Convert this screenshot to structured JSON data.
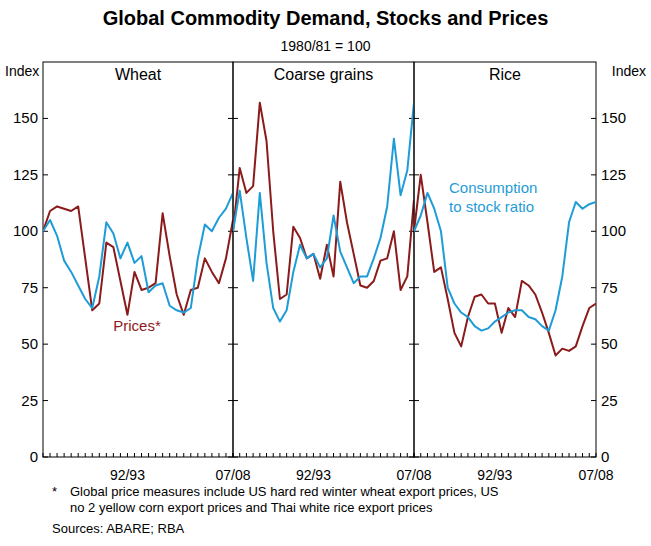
{
  "header": {
    "title": "Global Commodity Demand, Stocks and Prices",
    "subtitle": "1980/81 = 100"
  },
  "chart_data": [
    {
      "type": "line",
      "title": "Wheat",
      "ylabel": "Index",
      "categories": [
        null,
        null,
        null,
        null,
        null,
        null,
        null,
        null,
        null,
        null,
        null,
        null,
        "92/93",
        null,
        null,
        null,
        null,
        null,
        null,
        null,
        null,
        null,
        null,
        null,
        null,
        null,
        null,
        "07/08"
      ],
      "ylim": [
        0,
        175
      ],
      "yticks": [
        0,
        25,
        50,
        75,
        100,
        125,
        150
      ],
      "series": [
        {
          "name": "Prices*",
          "color": "#8b1a1a",
          "values": [
            100,
            109,
            111,
            110,
            109,
            111,
            88,
            65,
            68,
            95,
            93,
            78,
            63,
            82,
            74,
            75,
            77,
            108,
            89,
            72,
            63,
            74,
            75,
            88,
            82,
            77,
            88,
            105
          ]
        },
        {
          "color": "#1e9cd7",
          "values": [
            100,
            105,
            98,
            87,
            82,
            76,
            70,
            66,
            80,
            104,
            99,
            88,
            95,
            86,
            89,
            73,
            76,
            77,
            67,
            65,
            64,
            66,
            88,
            103,
            100,
            106,
            110,
            117
          ]
        }
      ]
    },
    {
      "type": "line",
      "title": "Coarse grains",
      "tick_labels": "x",
      "categories": [
        null,
        null,
        null,
        null,
        null,
        null,
        null,
        null,
        null,
        null,
        null,
        null,
        "92/93",
        null,
        null,
        null,
        null,
        null,
        null,
        null,
        null,
        null,
        null,
        null,
        null,
        null,
        null,
        "07/08"
      ],
      "ylim": [
        0,
        175
      ],
      "yticks": [
        0,
        25,
        50,
        75,
        100,
        125,
        150
      ],
      "series": [
        {
          "color": "#8b1a1a",
          "values": [
            100,
            128,
            117,
            120,
            157,
            140,
            100,
            70,
            72,
            102,
            97,
            88,
            90,
            79,
            94,
            80,
            122,
            104,
            90,
            76,
            75,
            78,
            87,
            88,
            100,
            74,
            80,
            114
          ]
        },
        {
          "color": "#1e9cd7",
          "values": [
            100,
            118,
            97,
            78,
            117,
            86,
            66,
            60,
            65,
            82,
            94,
            88,
            90,
            84,
            88,
            107,
            91,
            84,
            77,
            80,
            80,
            88,
            97,
            111,
            141,
            116,
            127,
            157
          ]
        }
      ]
    },
    {
      "type": "line",
      "title": "Rice",
      "ylabel": "Index",
      "categories": [
        null,
        null,
        null,
        null,
        null,
        null,
        null,
        null,
        null,
        null,
        null,
        null,
        "92/93",
        null,
        null,
        null,
        null,
        null,
        null,
        null,
        null,
        null,
        null,
        null,
        null,
        null,
        null,
        "07/08"
      ],
      "ylim": [
        0,
        175
      ],
      "yticks": [
        0,
        25,
        50,
        75,
        100,
        125,
        150
      ],
      "series": [
        {
          "color": "#8b1a1a",
          "values": [
            100,
            125,
            104,
            82,
            84,
            70,
            55,
            49,
            62,
            71,
            72,
            68,
            68,
            55,
            66,
            62,
            78,
            76,
            72,
            64,
            55,
            45,
            48,
            47,
            49,
            58,
            66,
            68
          ]
        },
        {
          "name": "Consumption to stock ratio",
          "color": "#1e9cd7",
          "values": [
            100,
            107,
            117,
            110,
            100,
            75,
            68,
            64,
            62,
            58,
            56,
            57,
            60,
            62,
            64,
            65,
            65,
            62,
            61,
            58,
            56,
            65,
            80,
            104,
            113,
            110,
            112,
            113
          ]
        }
      ]
    }
  ],
  "footer": {
    "note_marker": "*",
    "note_lines": [
      "Global price measures include US hard red winter wheat export prices, US",
      "no 2 yellow corn export prices and Thai white rice export prices"
    ],
    "sources": "Sources: ABARE; RBA"
  }
}
